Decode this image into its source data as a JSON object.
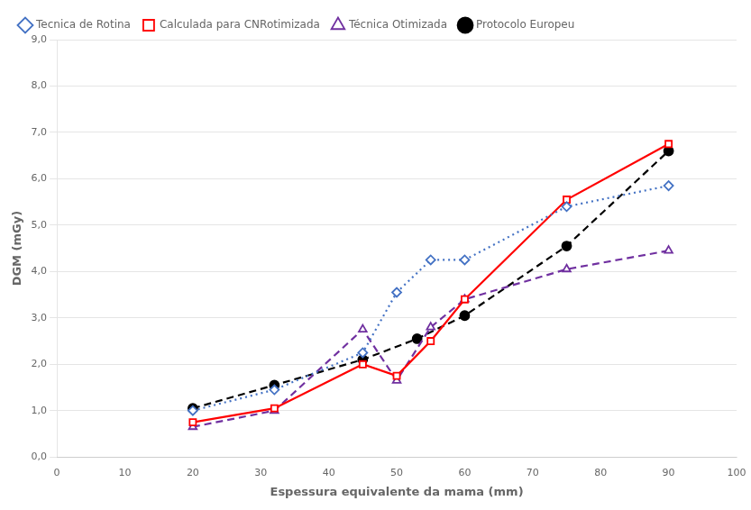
{
  "chart_data": {
    "type": "line",
    "x_label": "Espessura equivalente da mama (mm)",
    "y_label": "DGM (mGy)",
    "series": [
      {
        "name": "Tecnica de Rotina",
        "color": "#4472C4",
        "marker": "diamond",
        "line_style": "dotted",
        "x": [
          20,
          32,
          45,
          50,
          55,
          60,
          75,
          90
        ],
        "values": [
          1.0,
          1.45,
          2.25,
          3.55,
          4.25,
          4.25,
          5.4,
          5.85
        ]
      },
      {
        "name": "Calculada para CNRotimizada",
        "color": "#FF0000",
        "marker": "square",
        "line_style": "solid",
        "x": [
          20,
          32,
          45,
          50,
          55,
          60,
          75,
          90
        ],
        "values": [
          0.75,
          1.05,
          2.0,
          1.75,
          2.5,
          3.4,
          5.55,
          6.75
        ]
      },
      {
        "name": "Técnica Otimizada",
        "color": "#7030A0",
        "marker": "triangle",
        "line_style": "dashed",
        "x": [
          20,
          32,
          45,
          50,
          55,
          60,
          75,
          90
        ],
        "values": [
          0.65,
          1.0,
          2.75,
          1.65,
          2.8,
          3.4,
          4.05,
          4.45
        ]
      },
      {
        "name": "Protocolo Europeu",
        "color": "#000000",
        "marker": "circle",
        "line_style": "dashed",
        "x": [
          20,
          32,
          45,
          53,
          60,
          75,
          90
        ],
        "values": [
          1.05,
          1.55,
          2.1,
          2.55,
          3.05,
          4.55,
          6.6
        ]
      }
    ],
    "xlim": [
      0,
      100
    ],
    "xticks": [
      0,
      10,
      20,
      30,
      40,
      50,
      60,
      70,
      80,
      90,
      100
    ],
    "ylim": [
      0.0,
      9.0
    ],
    "yticks": [
      {
        "value": 0.0,
        "label": "0,0"
      },
      {
        "value": 1.0,
        "label": "1,0"
      },
      {
        "value": 2.0,
        "label": "2,0"
      },
      {
        "value": 3.0,
        "label": "3,0"
      },
      {
        "value": 4.0,
        "label": "4,0"
      },
      {
        "value": 5.0,
        "label": "5,0"
      },
      {
        "value": 6.0,
        "label": "6,0"
      },
      {
        "value": 7.0,
        "label": "7,0"
      },
      {
        "value": 8.0,
        "label": "8,0"
      },
      {
        "value": 9.0,
        "label": "9,0"
      }
    ],
    "grid": "y",
    "legend": "upper left"
  }
}
